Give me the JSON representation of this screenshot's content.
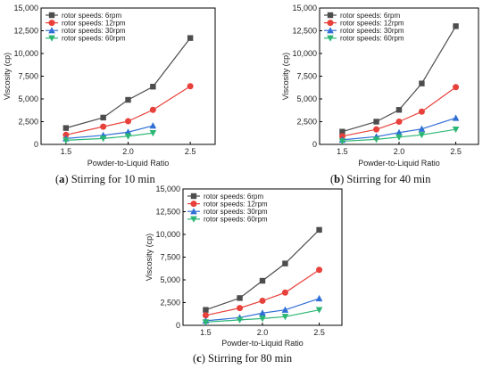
{
  "chart_data": [
    {
      "type": "line",
      "caption_letter": "a",
      "caption_text": " Stirring for 10 min",
      "xlabel": "Powder-to-Liquid Ratio",
      "ylabel": "Viscosity (cp)",
      "xlim": [
        1.3,
        2.7
      ],
      "ylim": [
        0,
        15000
      ],
      "xticks": [
        "1.5",
        "2.0",
        "2.5"
      ],
      "yticks": [
        "0",
        "2,500",
        "5,000",
        "7,500",
        "10,000",
        "12,500",
        "15,000"
      ],
      "legend_position": "top-left",
      "series": [
        {
          "name": "rotor speeds: 6rpm",
          "color": "#4d4d4d",
          "marker": "square",
          "x": [
            1.5,
            1.8,
            2.0,
            2.2,
            2.5
          ],
          "y": [
            1800,
            2950,
            4900,
            6350,
            11700
          ]
        },
        {
          "name": "rotor speeds: 12rpm",
          "color": "#e8403a",
          "marker": "circle",
          "x": [
            1.5,
            1.8,
            2.0,
            2.2,
            2.5
          ],
          "y": [
            1050,
            1950,
            2550,
            3800,
            6400
          ]
        },
        {
          "name": "rotor speeds: 30rpm",
          "color": "#2f6fd6",
          "marker": "triangle-up",
          "x": [
            1.5,
            1.8,
            2.0,
            2.2
          ],
          "y": [
            650,
            1000,
            1350,
            2050
          ]
        },
        {
          "name": "rotor speeds: 60rpm",
          "color": "#2bb673",
          "marker": "triangle-down",
          "x": [
            1.5,
            1.8,
            2.0,
            2.2
          ],
          "y": [
            450,
            650,
            900,
            1250
          ]
        }
      ]
    },
    {
      "type": "line",
      "caption_letter": "b",
      "caption_text": " Stirring for 40 min",
      "xlabel": "Powder-to-Liquid Ratio",
      "ylabel": "Viscosity (cp)",
      "xlim": [
        1.3,
        2.7
      ],
      "ylim": [
        0,
        15000
      ],
      "xticks": [
        "1.5",
        "2.0",
        "2.5"
      ],
      "yticks": [
        "0",
        "2,500",
        "5,000",
        "7,500",
        "10,000",
        "12,500",
        "15,000"
      ],
      "legend_position": "top-left",
      "series": [
        {
          "name": "rotor speeds: 6rpm",
          "color": "#4d4d4d",
          "marker": "square",
          "x": [
            1.5,
            1.8,
            2.0,
            2.2,
            2.5
          ],
          "y": [
            1400,
            2500,
            3800,
            6700,
            13000
          ]
        },
        {
          "name": "rotor speeds: 12rpm",
          "color": "#e8403a",
          "marker": "circle",
          "x": [
            1.5,
            1.8,
            2.0,
            2.2,
            2.5
          ],
          "y": [
            900,
            1650,
            2500,
            3600,
            6300
          ]
        },
        {
          "name": "rotor speeds: 30rpm",
          "color": "#2f6fd6",
          "marker": "triangle-up",
          "x": [
            1.5,
            1.8,
            2.0,
            2.2,
            2.5
          ],
          "y": [
            500,
            850,
            1300,
            1700,
            2900
          ]
        },
        {
          "name": "rotor speeds: 60rpm",
          "color": "#2bb673",
          "marker": "triangle-down",
          "x": [
            1.5,
            1.8,
            2.0,
            2.2,
            2.5
          ],
          "y": [
            350,
            550,
            800,
            1050,
            1650
          ]
        }
      ]
    },
    {
      "type": "line",
      "caption_letter": "c",
      "caption_text": " Stirring for 80 min",
      "xlabel": "Powder-to-Liquid Ratio",
      "ylabel": "Viscosity (cp)",
      "xlim": [
        1.3,
        2.7
      ],
      "ylim": [
        0,
        15000
      ],
      "xticks": [
        "1.5",
        "2.0",
        "2.5"
      ],
      "yticks": [
        "0",
        "2,500",
        "5,000",
        "7,500",
        "10,000",
        "12,500",
        "15,000"
      ],
      "legend_position": "top-left",
      "series": [
        {
          "name": "rotor speeds: 6rpm",
          "color": "#4d4d4d",
          "marker": "square",
          "x": [
            1.5,
            1.8,
            2.0,
            2.2,
            2.5
          ],
          "y": [
            1700,
            3000,
            4900,
            6800,
            10500
          ]
        },
        {
          "name": "rotor speeds: 12rpm",
          "color": "#e8403a",
          "marker": "circle",
          "x": [
            1.5,
            1.8,
            2.0,
            2.2,
            2.5
          ],
          "y": [
            1100,
            1900,
            2700,
            3600,
            6100
          ]
        },
        {
          "name": "rotor speeds: 30rpm",
          "color": "#2f6fd6",
          "marker": "triangle-up",
          "x": [
            1.5,
            1.8,
            2.0,
            2.2,
            2.5
          ],
          "y": [
            500,
            850,
            1350,
            1700,
            2950
          ]
        },
        {
          "name": "rotor speeds: 60rpm",
          "color": "#2bb673",
          "marker": "triangle-down",
          "x": [
            1.5,
            1.8,
            2.0,
            2.2,
            2.5
          ],
          "y": [
            350,
            600,
            750,
            950,
            1700
          ]
        }
      ]
    }
  ]
}
